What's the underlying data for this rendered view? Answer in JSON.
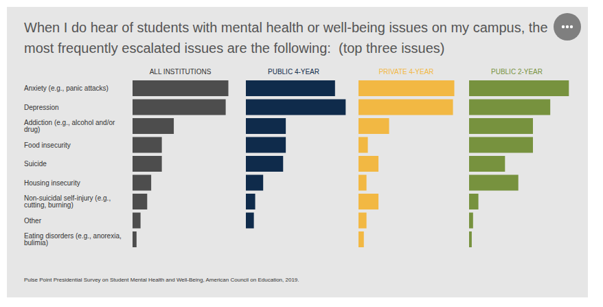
{
  "chart_data": {
    "type": "bar",
    "orientation": "horizontal",
    "title": "When I do hear of students with mental health or well-being issues on my campus, the most frequently escalated issues are the following:  (top three issues)",
    "source": "Pulse Point Presidential Survey on Student Mental Health and Well-Being, American Council on Education, 2019.",
    "categories": [
      "Anxiety (e.g., panic attacks)",
      "Depression",
      "Addiction (e.g., alcohol and/or drug)",
      "Food insecurity",
      "Suicide",
      "Housing insecurity",
      "Non-suicidal self-injury (e.g., cutting, burning)",
      "Other",
      "Eating disorders (e.g., anorexia, bulimia)"
    ],
    "series": [
      {
        "name": "ALL INSTITUTIONS",
        "color": "#4d4d4d",
        "values": [
          72,
          70,
          31,
          22,
          22,
          14,
          11,
          6,
          3
        ]
      },
      {
        "name": "PUBLIC 4-YEAR",
        "color": "#0f2b4b",
        "values": [
          67,
          75,
          30,
          30,
          28,
          13,
          7,
          6,
          0
        ]
      },
      {
        "name": "PRIVATE 4-YEAR",
        "color": "#f2b843",
        "values": [
          72,
          71,
          23,
          7,
          15,
          6,
          15,
          6,
          4
        ]
      },
      {
        "name": "PUBLIC 2-YEAR",
        "color": "#77923e",
        "values": [
          75,
          61,
          48,
          48,
          27,
          37,
          7,
          3,
          2
        ]
      }
    ],
    "xlim": [
      0,
      80
    ],
    "tick_labels": false,
    "grid": false
  }
}
